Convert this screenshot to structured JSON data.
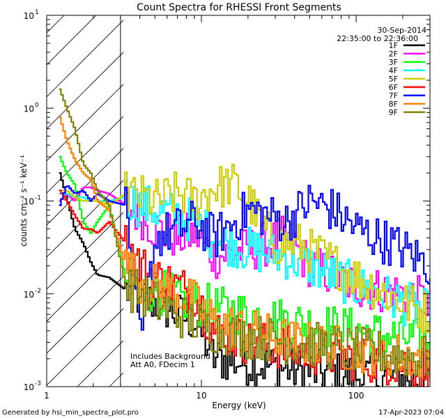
{
  "chart_data": {
    "type": "line",
    "title": "Count Spectra for RHESSI Front Segments",
    "xlabel": "Energy (keV)",
    "ylabel": "counts cm⁻² s⁻¹ keV⁻¹",
    "xscale": "log",
    "yscale": "log",
    "xlim": [
      1,
      300
    ],
    "ylim": [
      0.001,
      10
    ],
    "x_ticks": [
      {
        "value": 1,
        "label": "1"
      },
      {
        "value": 10,
        "label": "10"
      },
      {
        "value": 100,
        "label": "100"
      }
    ],
    "y_ticks": [
      {
        "value": 10,
        "base": "10",
        "exp": "1"
      },
      {
        "value": 1,
        "base": "10",
        "exp": "0"
      },
      {
        "value": 0.1,
        "base": "10",
        "exp": "-1"
      },
      {
        "value": 0.01,
        "base": "10",
        "exp": "-2"
      },
      {
        "value": 0.001,
        "base": "10",
        "exp": "-3"
      }
    ],
    "excluded_region": {
      "from": 1,
      "to": 3,
      "style": "hatched"
    },
    "date": "30-Sep-2014",
    "time_range": "22:35:00 to 22:36:00",
    "annotations": [
      "Includes Background",
      "Att A0, FDecim 1"
    ],
    "series": [
      {
        "name": "1F",
        "color": "#000000",
        "points": [
          [
            1.2,
            0.2
          ],
          [
            1.33,
            0.11
          ],
          [
            1.5,
            0.05
          ],
          [
            1.7,
            0.035
          ],
          [
            1.9,
            0.022
          ],
          [
            2.1,
            0.016
          ],
          [
            2.5,
            0.015
          ],
          [
            3.2,
            0.011
          ],
          [
            4,
            0.009
          ],
          [
            5,
            0.008
          ],
          [
            7,
            0.006
          ],
          [
            9,
            0.005
          ],
          [
            12,
            0.002
          ],
          [
            20,
            0.0018
          ],
          [
            40,
            0.0015
          ],
          [
            100,
            0.0013
          ],
          [
            300,
            0.0012
          ]
        ]
      },
      {
        "name": "2F",
        "color": "#ff00ff",
        "points": [
          [
            1.2,
            0.1
          ],
          [
            1.33,
            0.12
          ],
          [
            1.5,
            0.1
          ],
          [
            1.7,
            0.14
          ],
          [
            1.9,
            0.14
          ],
          [
            2.1,
            0.13
          ],
          [
            2.5,
            0.12
          ],
          [
            3.2,
            0.09
          ],
          [
            4,
            0.07
          ],
          [
            5,
            0.05
          ],
          [
            7,
            0.04
          ],
          [
            9,
            0.045
          ],
          [
            12,
            0.025
          ],
          [
            20,
            0.03
          ],
          [
            35,
            0.04
          ],
          [
            50,
            0.02
          ],
          [
            100,
            0.012
          ],
          [
            200,
            0.01
          ],
          [
            300,
            0.008
          ]
        ]
      },
      {
        "name": "3F",
        "color": "#00ff00",
        "points": [
          [
            1.2,
            0.3
          ],
          [
            1.33,
            0.2
          ],
          [
            1.5,
            0.15
          ],
          [
            1.7,
            0.06
          ],
          [
            1.9,
            0.045
          ],
          [
            2.1,
            0.06
          ],
          [
            2.5,
            0.09
          ],
          [
            3.2,
            0.015
          ],
          [
            4,
            0.011
          ],
          [
            5,
            0.011
          ],
          [
            7,
            0.009
          ],
          [
            9,
            0.008
          ],
          [
            12,
            0.007
          ],
          [
            20,
            0.006
          ],
          [
            40,
            0.005
          ],
          [
            100,
            0.004
          ],
          [
            300,
            0.003
          ]
        ]
      },
      {
        "name": "4F",
        "color": "#00ffff",
        "points": [
          [
            1.2,
            0.12
          ],
          [
            1.33,
            0.12
          ],
          [
            1.5,
            0.11
          ],
          [
            1.7,
            0.11
          ],
          [
            1.9,
            0.1
          ],
          [
            2.1,
            0.1
          ],
          [
            2.5,
            0.1
          ],
          [
            3.2,
            0.11
          ],
          [
            4,
            0.09
          ],
          [
            5,
            0.08
          ],
          [
            7,
            0.07
          ],
          [
            9,
            0.06
          ],
          [
            12,
            0.04
          ],
          [
            20,
            0.03
          ],
          [
            35,
            0.025
          ],
          [
            50,
            0.02
          ],
          [
            100,
            0.012
          ],
          [
            200,
            0.008
          ],
          [
            300,
            0.006
          ]
        ]
      },
      {
        "name": "5F",
        "color": "#cccc00",
        "points": [
          [
            1.2,
            0.13
          ],
          [
            1.33,
            0.13
          ],
          [
            1.5,
            0.11
          ],
          [
            1.7,
            0.1
          ],
          [
            1.9,
            0.1
          ],
          [
            2.1,
            0.1
          ],
          [
            2.5,
            0.09
          ],
          [
            3.2,
            0.12
          ],
          [
            4,
            0.11
          ],
          [
            5,
            0.1
          ],
          [
            7,
            0.12
          ],
          [
            9,
            0.1
          ],
          [
            12,
            0.14
          ],
          [
            16,
            0.15
          ],
          [
            20,
            0.1
          ],
          [
            25,
            0.05
          ],
          [
            30,
            0.035
          ],
          [
            40,
            0.035
          ],
          [
            60,
            0.025
          ],
          [
            100,
            0.015
          ],
          [
            200,
            0.008
          ],
          [
            300,
            0.006
          ]
        ]
      },
      {
        "name": "6F",
        "color": "#ff0000",
        "points": [
          [
            1.2,
            0.13
          ],
          [
            1.33,
            0.1
          ],
          [
            1.5,
            0.07
          ],
          [
            1.7,
            0.05
          ],
          [
            1.9,
            0.05
          ],
          [
            2.1,
            0.045
          ],
          [
            2.5,
            0.06
          ],
          [
            3.2,
            0.035
          ],
          [
            4,
            0.02
          ],
          [
            5,
            0.015
          ],
          [
            7,
            0.012
          ],
          [
            9,
            0.01
          ],
          [
            12,
            0.004
          ],
          [
            20,
            0.003
          ],
          [
            40,
            0.0025
          ],
          [
            100,
            0.002
          ],
          [
            300,
            0.0016
          ]
        ]
      },
      {
        "name": "7F",
        "color": "#0000ff",
        "points": [
          [
            1.2,
            0.09
          ],
          [
            1.33,
            0.15
          ],
          [
            1.5,
            0.12
          ],
          [
            1.7,
            0.13
          ],
          [
            1.9,
            0.1
          ],
          [
            2.1,
            0.12
          ],
          [
            2.5,
            0.1
          ],
          [
            3.2,
            0.09
          ],
          [
            4,
            0.0028
          ],
          [
            5,
            0.04
          ],
          [
            7,
            0.05
          ],
          [
            9,
            0.06
          ],
          [
            12,
            0.04
          ],
          [
            20,
            0.08
          ],
          [
            35,
            0.06
          ],
          [
            50,
            0.1
          ],
          [
            70,
            0.08
          ],
          [
            100,
            0.05
          ],
          [
            200,
            0.03
          ],
          [
            300,
            0.02
          ]
        ]
      },
      {
        "name": "8F",
        "color": "#ff8000",
        "points": [
          [
            1.2,
            0.8
          ],
          [
            1.33,
            0.45
          ],
          [
            1.5,
            0.28
          ],
          [
            1.7,
            0.2
          ],
          [
            1.9,
            0.17
          ],
          [
            2.1,
            0.1
          ],
          [
            2.5,
            0.08
          ],
          [
            3.2,
            0.02
          ],
          [
            4,
            0.014
          ],
          [
            5,
            0.012
          ],
          [
            7,
            0.01
          ],
          [
            9,
            0.008
          ],
          [
            12,
            0.005
          ],
          [
            20,
            0.004
          ],
          [
            40,
            0.003
          ],
          [
            100,
            0.0025
          ],
          [
            300,
            0.002
          ]
        ]
      },
      {
        "name": "9F",
        "color": "#808000",
        "points": [
          [
            1.2,
            1.6
          ],
          [
            1.33,
            1.0
          ],
          [
            1.5,
            0.6
          ],
          [
            1.7,
            0.25
          ],
          [
            1.9,
            0.2
          ],
          [
            2.1,
            0.13
          ],
          [
            2.5,
            0.09
          ],
          [
            3.2,
            0.012
          ],
          [
            4,
            0.01
          ],
          [
            5,
            0.008
          ],
          [
            7,
            0.006
          ],
          [
            9,
            0.005
          ],
          [
            12,
            0.004
          ],
          [
            20,
            0.0035
          ],
          [
            40,
            0.003
          ],
          [
            100,
            0.0025
          ],
          [
            300,
            0.002
          ]
        ]
      }
    ]
  },
  "footer": {
    "generated_by": "Generated by hsi_min_spectra_plot.pro",
    "timestamp": "17-Apr-2023 07:04"
  }
}
